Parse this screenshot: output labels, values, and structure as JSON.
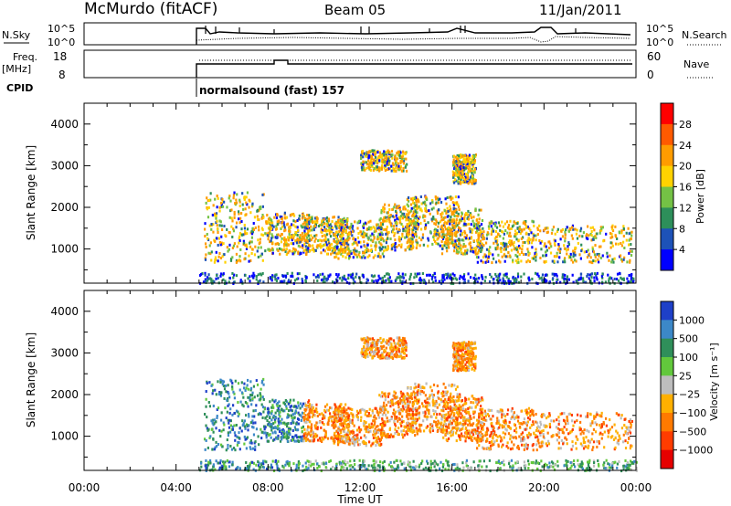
{
  "header": {
    "station": "McMurdo (fitACF)",
    "beam": "Beam 05",
    "date": "11/Jan/2011"
  },
  "top_panels": {
    "nsky_label": "N.Sky",
    "nsky_ticks": [
      "10^5",
      "10^0"
    ],
    "nsearch_label": "N.Search",
    "freq_label": "Freq.",
    "freq_unit": "[MHz]",
    "freq_ticks": [
      "18",
      "8"
    ],
    "nave_label": "Nave",
    "nave_ticks": [
      "60",
      "0"
    ],
    "cpid_label": "CPID",
    "cpid_text": "normalsound (fast) 157"
  },
  "chart_data": [
    {
      "type": "heatmap",
      "name": "power",
      "ylabel": "Slant Range [km]",
      "y_ticks": [
        1000,
        2000,
        3000,
        4000
      ],
      "ylim": [
        180,
        4500
      ],
      "xlim": [
        0,
        24
      ],
      "colorbar": {
        "label": "Power [dB]",
        "ticks": [
          "28",
          "24",
          "20",
          "16",
          "12",
          "8",
          "4"
        ],
        "colors": [
          "#ff0000",
          "#ff5a00",
          "#ff9c00",
          "#ffd200",
          "#74c245",
          "#2d8f5a",
          "#1d52b8",
          "#0000ff"
        ]
      },
      "data_start_hour": 5.0
    },
    {
      "type": "heatmap",
      "name": "velocity",
      "ylabel": "Slant Range [km]",
      "y_ticks": [
        1000,
        2000,
        3000,
        4000
      ],
      "ylim": [
        180,
        4500
      ],
      "xlim": [
        0,
        24
      ],
      "colorbar": {
        "label": "Velocity [m s⁻¹]",
        "ticks": [
          "1000",
          "500",
          "100",
          "25",
          "−25",
          "−100",
          "−500",
          "−1000"
        ],
        "colors": [
          "#1e40c8",
          "#3c88c8",
          "#2f8f5a",
          "#62c83c",
          "#bdbdbd",
          "#ffb000",
          "#ff7a00",
          "#ff3c00",
          "#e60000"
        ]
      },
      "data_start_hour": 5.0
    }
  ],
  "x_axis": {
    "tick_labels": [
      "00:00",
      "04:00",
      "08:00",
      "12:00",
      "16:00",
      "20:00",
      "00:00"
    ],
    "tick_hours": [
      0,
      4,
      8,
      12,
      16,
      20,
      24
    ],
    "label": "Time UT"
  }
}
